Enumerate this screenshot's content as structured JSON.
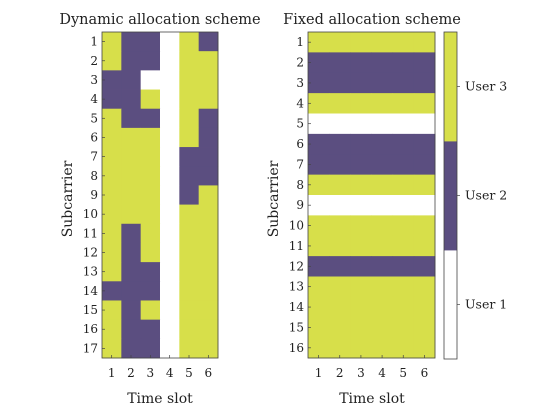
{
  "colors": {
    "user1": "#ffffff",
    "user2": "#5b4e80",
    "user3": "#d7df4a"
  },
  "chart_data": [
    {
      "type": "heatmap",
      "title": "Dynamic allocation scheme",
      "xlabel": "Time slot",
      "ylabel": "Subcarrier",
      "x": [
        "1",
        "2",
        "3",
        "4",
        "5",
        "6"
      ],
      "y": [
        "1",
        "2",
        "3",
        "4",
        "5",
        "6",
        "7",
        "8",
        "9",
        "10",
        "11",
        "12",
        "13",
        "14",
        "15",
        "16",
        "17"
      ],
      "grid": [
        [
          3,
          2,
          2,
          1,
          3,
          2
        ],
        [
          3,
          2,
          2,
          1,
          3,
          3
        ],
        [
          2,
          2,
          1,
          1,
          3,
          3
        ],
        [
          2,
          2,
          3,
          1,
          3,
          3
        ],
        [
          3,
          2,
          2,
          1,
          3,
          2
        ],
        [
          3,
          3,
          3,
          1,
          3,
          2
        ],
        [
          3,
          3,
          3,
          1,
          2,
          2
        ],
        [
          3,
          3,
          3,
          1,
          2,
          2
        ],
        [
          3,
          3,
          3,
          1,
          2,
          3
        ],
        [
          3,
          3,
          3,
          1,
          3,
          3
        ],
        [
          3,
          2,
          3,
          1,
          3,
          3
        ],
        [
          3,
          2,
          3,
          1,
          3,
          3
        ],
        [
          3,
          2,
          2,
          1,
          3,
          3
        ],
        [
          2,
          2,
          2,
          1,
          3,
          3
        ],
        [
          3,
          2,
          3,
          1,
          3,
          3
        ],
        [
          3,
          2,
          2,
          1,
          3,
          3
        ],
        [
          3,
          2,
          2,
          1,
          3,
          3
        ]
      ]
    },
    {
      "type": "heatmap",
      "title": "Fixed allocation scheme",
      "xlabel": "Time slot",
      "ylabel": "Subcarrier",
      "x": [
        "1",
        "2",
        "3",
        "4",
        "5",
        "6"
      ],
      "y": [
        "1",
        "2",
        "3",
        "4",
        "5",
        "6",
        "7",
        "8",
        "9",
        "10",
        "11",
        "12",
        "13",
        "14",
        "15",
        "16"
      ],
      "row_values": [
        3,
        2,
        2,
        3,
        1,
        2,
        2,
        3,
        1,
        3,
        3,
        2,
        3,
        3,
        3,
        3
      ]
    }
  ],
  "colorbar": {
    "labels": [
      "User 1",
      "User 2",
      "User 3"
    ],
    "values": [
      1,
      2,
      3
    ]
  }
}
